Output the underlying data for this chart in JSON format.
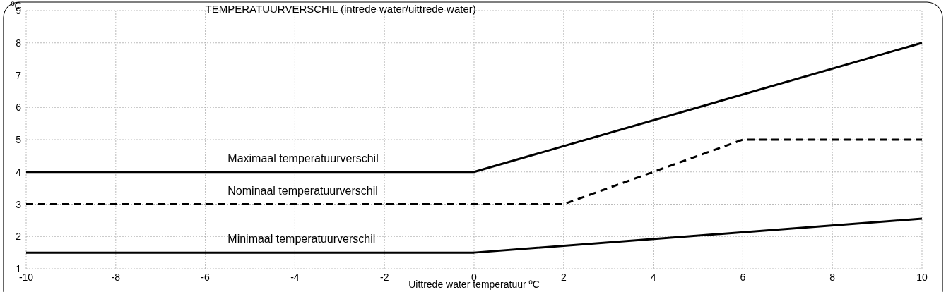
{
  "chart_data": {
    "type": "line",
    "title": "TEMPERATUURVERSCHIL (intrede water/uittrede water)",
    "xlabel": "Uittrede water temperatuur ºC",
    "ylabel": "ºC",
    "xlim": [
      -10,
      10
    ],
    "xticks": [
      -10,
      -8,
      -6,
      -4,
      -2,
      0,
      2,
      4,
      6,
      8,
      10
    ],
    "ylim": [
      1,
      9
    ],
    "yticks": [
      1,
      2,
      3,
      4,
      5,
      6,
      7,
      8,
      9
    ],
    "grid": true,
    "marker": "none",
    "series": [
      {
        "name": "Maximaal temperatuurverschil",
        "color": "#000000",
        "line_style": "solid",
        "x": [
          -10,
          0,
          10
        ],
        "values": [
          4,
          4,
          8
        ]
      },
      {
        "name": "Nominaal temperatuurverschil",
        "color": "#000000",
        "line_style": "dashed",
        "x": [
          -10,
          2,
          6,
          10
        ],
        "values": [
          3,
          3,
          5,
          5
        ]
      },
      {
        "name": "Minimaal temperatuurverschil",
        "color": "#000000",
        "line_style": "solid",
        "x": [
          -10,
          0,
          10
        ],
        "values": [
          1.5,
          1.5,
          2.55
        ]
      }
    ]
  }
}
